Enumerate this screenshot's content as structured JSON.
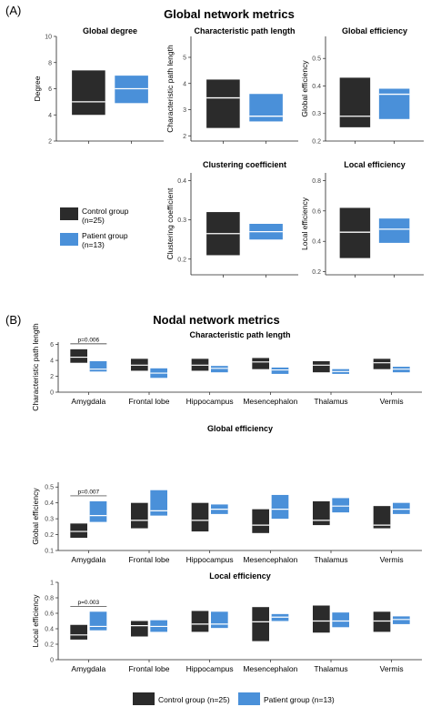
{
  "panel_a": {
    "label": "(A)",
    "title": "Global network metrics",
    "legend": [
      {
        "label": "Control group",
        "label2": "(n=25)",
        "color": "#2b2b2b"
      },
      {
        "label": "Patient group",
        "label2": "(n=13)",
        "color": "#4a90d9"
      }
    ]
  },
  "panel_b": {
    "label": "(B)",
    "title": "Nodal network metrics",
    "legend": [
      {
        "label": "Control group (n=25)",
        "color": "#2b2b2b"
      },
      {
        "label": "Patient group (n=13)",
        "color": "#4a90d9"
      }
    ]
  },
  "colors": {
    "control": "#2b2b2b",
    "patient": "#4a90d9",
    "median": "#ffffff",
    "axis": "#222222"
  },
  "chart_data": [
    {
      "type": "box",
      "title": "Global degree",
      "ylabel": "Degree",
      "ylim": [
        2,
        10
      ],
      "yticks": [
        2,
        4,
        6,
        8,
        10
      ],
      "series": [
        {
          "name": "Control group",
          "low": 4.0,
          "median": 5.0,
          "high": 7.4
        },
        {
          "name": "Patient group",
          "low": 4.9,
          "median": 6.0,
          "high": 7.0
        }
      ]
    },
    {
      "type": "box",
      "title": "Characteristic path length",
      "ylabel": "Characteristic path length",
      "ylim": [
        1.8,
        5.8
      ],
      "yticks": [
        2,
        3,
        4,
        5
      ],
      "series": [
        {
          "name": "Control group",
          "low": 2.3,
          "median": 3.45,
          "high": 4.15
        },
        {
          "name": "Patient group",
          "low": 2.55,
          "median": 2.75,
          "high": 3.6
        }
      ]
    },
    {
      "type": "box",
      "title": "Global efficiency",
      "ylabel": "Global efficiency",
      "ylim": [
        0.2,
        0.58
      ],
      "yticks": [
        0.2,
        0.3,
        0.4,
        0.5
      ],
      "series": [
        {
          "name": "Control group",
          "low": 0.25,
          "median": 0.29,
          "high": 0.43
        },
        {
          "name": "Patient group",
          "low": 0.28,
          "median": 0.37,
          "high": 0.39
        }
      ]
    },
    {
      "type": "box",
      "title": "Clustering coefficient",
      "ylabel": "Clustering coefficient",
      "ylim": [
        0.16,
        0.42
      ],
      "yticks": [
        0.2,
        0.3,
        0.4
      ],
      "series": [
        {
          "name": "Control group",
          "low": 0.21,
          "median": 0.265,
          "high": 0.32
        },
        {
          "name": "Patient group",
          "low": 0.25,
          "median": 0.27,
          "high": 0.29
        }
      ]
    },
    {
      "type": "box",
      "title": "Local efficiency",
      "ylabel": "Local efficiency",
      "ylim": [
        0.18,
        0.85
      ],
      "yticks": [
        0.2,
        0.4,
        0.6,
        0.8
      ],
      "series": [
        {
          "name": "Control group",
          "low": 0.29,
          "median": 0.46,
          "high": 0.62
        },
        {
          "name": "Patient group",
          "low": 0.39,
          "median": 0.48,
          "high": 0.55
        }
      ]
    },
    {
      "type": "box",
      "title": "Characteristic path length",
      "ylabel": "Characteristic path length",
      "ylim": [
        0,
        6.3
      ],
      "yticks": [
        0,
        2,
        4,
        6
      ],
      "categories": [
        "Amygdala",
        "Frontal lobe",
        "Hippocampus",
        "Mesencephalon",
        "Thalamus",
        "Vermis"
      ],
      "annotation": {
        "category": "Amygdala",
        "text": "p=0.006"
      },
      "series": [
        {
          "name": "Control group",
          "low": [
            3.7,
            2.7,
            2.7,
            2.9,
            2.5,
            2.9
          ],
          "median": [
            4.4,
            3.4,
            3.4,
            3.8,
            3.4,
            3.7
          ],
          "high": [
            5.4,
            4.2,
            4.2,
            4.3,
            3.9,
            4.2
          ]
        },
        {
          "name": "Patient group",
          "low": [
            2.6,
            1.8,
            2.5,
            2.3,
            2.3,
            2.5
          ],
          "median": [
            2.9,
            2.4,
            3.0,
            2.8,
            2.6,
            2.9
          ],
          "high": [
            3.9,
            3.0,
            3.3,
            3.1,
            2.9,
            3.2
          ]
        }
      ]
    },
    {
      "type": "box",
      "title": "Global efficiency",
      "ylabel": "Global efficiency",
      "ylim": [
        0.1,
        0.53
      ],
      "yticks": [
        0.1,
        0.2,
        0.3,
        0.4,
        0.5
      ],
      "categories": [
        "Amygdala",
        "Frontal lobe",
        "Hippocampus",
        "Mesencephalon",
        "Thalamus",
        "Vermis"
      ],
      "annotation": {
        "category": "Amygdala",
        "text": "p=0.007"
      },
      "series": [
        {
          "name": "Control group",
          "low": [
            0.18,
            0.24,
            0.22,
            0.21,
            0.26,
            0.24
          ],
          "median": [
            0.22,
            0.29,
            0.29,
            0.26,
            0.29,
            0.26
          ],
          "high": [
            0.27,
            0.4,
            0.4,
            0.36,
            0.41,
            0.38
          ]
        },
        {
          "name": "Patient group",
          "low": [
            0.28,
            0.32,
            0.33,
            0.3,
            0.34,
            0.33
          ],
          "median": [
            0.32,
            0.35,
            0.36,
            0.36,
            0.38,
            0.36
          ],
          "high": [
            0.41,
            0.48,
            0.39,
            0.45,
            0.43,
            0.4
          ]
        }
      ]
    },
    {
      "type": "box",
      "title": "Local efficiency",
      "ylabel": "Local efficiency",
      "ylim": [
        0.0,
        1.0
      ],
      "yticks": [
        0.0,
        0.2,
        0.4,
        0.6,
        0.8,
        1.0
      ],
      "categories": [
        "Amygdala",
        "Frontal lobe",
        "Hippocampus",
        "Mesencephalon",
        "Thalamus",
        "Vermis"
      ],
      "annotation": {
        "category": "Amygdala",
        "text": "p=0.003"
      },
      "series": [
        {
          "name": "Control group",
          "low": [
            0.26,
            0.3,
            0.36,
            0.24,
            0.35,
            0.36
          ],
          "median": [
            0.32,
            0.44,
            0.46,
            0.49,
            0.5,
            0.5
          ],
          "high": [
            0.45,
            0.5,
            0.63,
            0.68,
            0.7,
            0.62
          ]
        },
        {
          "name": "Patient group",
          "low": [
            0.38,
            0.36,
            0.41,
            0.5,
            0.42,
            0.46
          ],
          "median": [
            0.43,
            0.43,
            0.46,
            0.55,
            0.5,
            0.52
          ],
          "high": [
            0.62,
            0.51,
            0.62,
            0.59,
            0.61,
            0.56
          ]
        }
      ]
    }
  ]
}
